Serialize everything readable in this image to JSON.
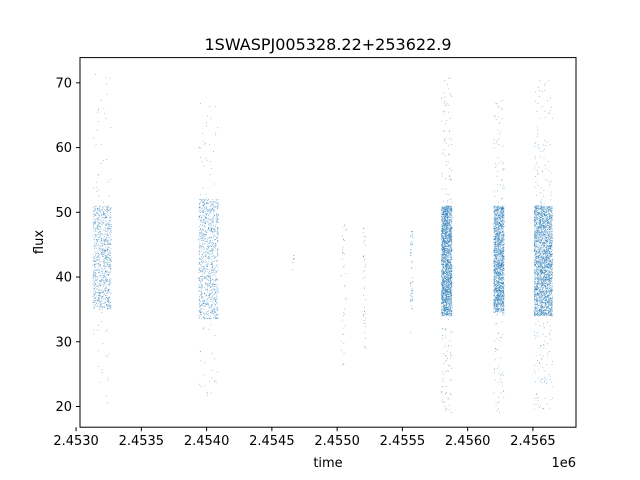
{
  "chart_data": {
    "type": "scatter",
    "title": "1SWASPJ005328.22+253622.9",
    "xlabel": "time",
    "ylabel": "flux",
    "x_offset_label": "1e6",
    "xlim": [
      2.45303,
      2.45683
    ],
    "ylim": [
      16.8,
      73.9
    ],
    "x_ticks": [
      2.453,
      2.4535,
      2.454,
      2.4545,
      2.455,
      2.4555,
      2.456,
      2.4565
    ],
    "x_tick_labels": [
      "2.4530",
      "2.4535",
      "2.4540",
      "2.4545",
      "2.4550",
      "2.4555",
      "2.4560",
      "2.4565"
    ],
    "y_ticks": [
      20,
      30,
      40,
      50,
      60,
      70
    ],
    "y_tick_labels": [
      "20",
      "30",
      "40",
      "50",
      "60",
      "70"
    ],
    "grid": false,
    "marker_color": "#1f77b4",
    "clusters": [
      {
        "x_start": 2.45313,
        "x_end": 2.45327,
        "y_low": 35,
        "y_high": 51,
        "density": 900,
        "out_low": 20.5,
        "out_high": 71.5
      },
      {
        "x_start": 2.45394,
        "x_end": 2.45409,
        "y_low": 33.5,
        "y_high": 52,
        "density": 1000,
        "out_low": 21.5,
        "out_high": 67.5
      },
      {
        "x_start": 2.45466,
        "x_end": 2.45467,
        "y_low": 42,
        "y_high": 43.5,
        "density": 8,
        "out_low": 31.5,
        "out_high": 43.5
      },
      {
        "x_start": 2.45503,
        "x_end": 2.45507,
        "y_low": 26.5,
        "y_high": 48,
        "density": 40,
        "out_low": 26.5,
        "out_high": 48
      },
      {
        "x_start": 2.4552,
        "x_end": 2.45522,
        "y_low": 29,
        "y_high": 47.5,
        "density": 40,
        "out_low": 29,
        "out_high": 47.5
      },
      {
        "x_start": 2.45556,
        "x_end": 2.45558,
        "y_low": 35,
        "y_high": 47,
        "density": 60,
        "out_low": 27.5,
        "out_high": 47
      },
      {
        "x_start": 2.4558,
        "x_end": 2.45588,
        "y_low": 34,
        "y_high": 51,
        "density": 2200,
        "out_low": 19,
        "out_high": 71
      },
      {
        "x_start": 2.4562,
        "x_end": 2.45628,
        "y_low": 34.5,
        "y_high": 51,
        "density": 1800,
        "out_low": 19,
        "out_high": 67.5
      },
      {
        "x_start": 2.45651,
        "x_end": 2.45665,
        "y_low": 34,
        "y_high": 51,
        "density": 2600,
        "out_low": 19.5,
        "out_high": 70.5
      }
    ]
  }
}
